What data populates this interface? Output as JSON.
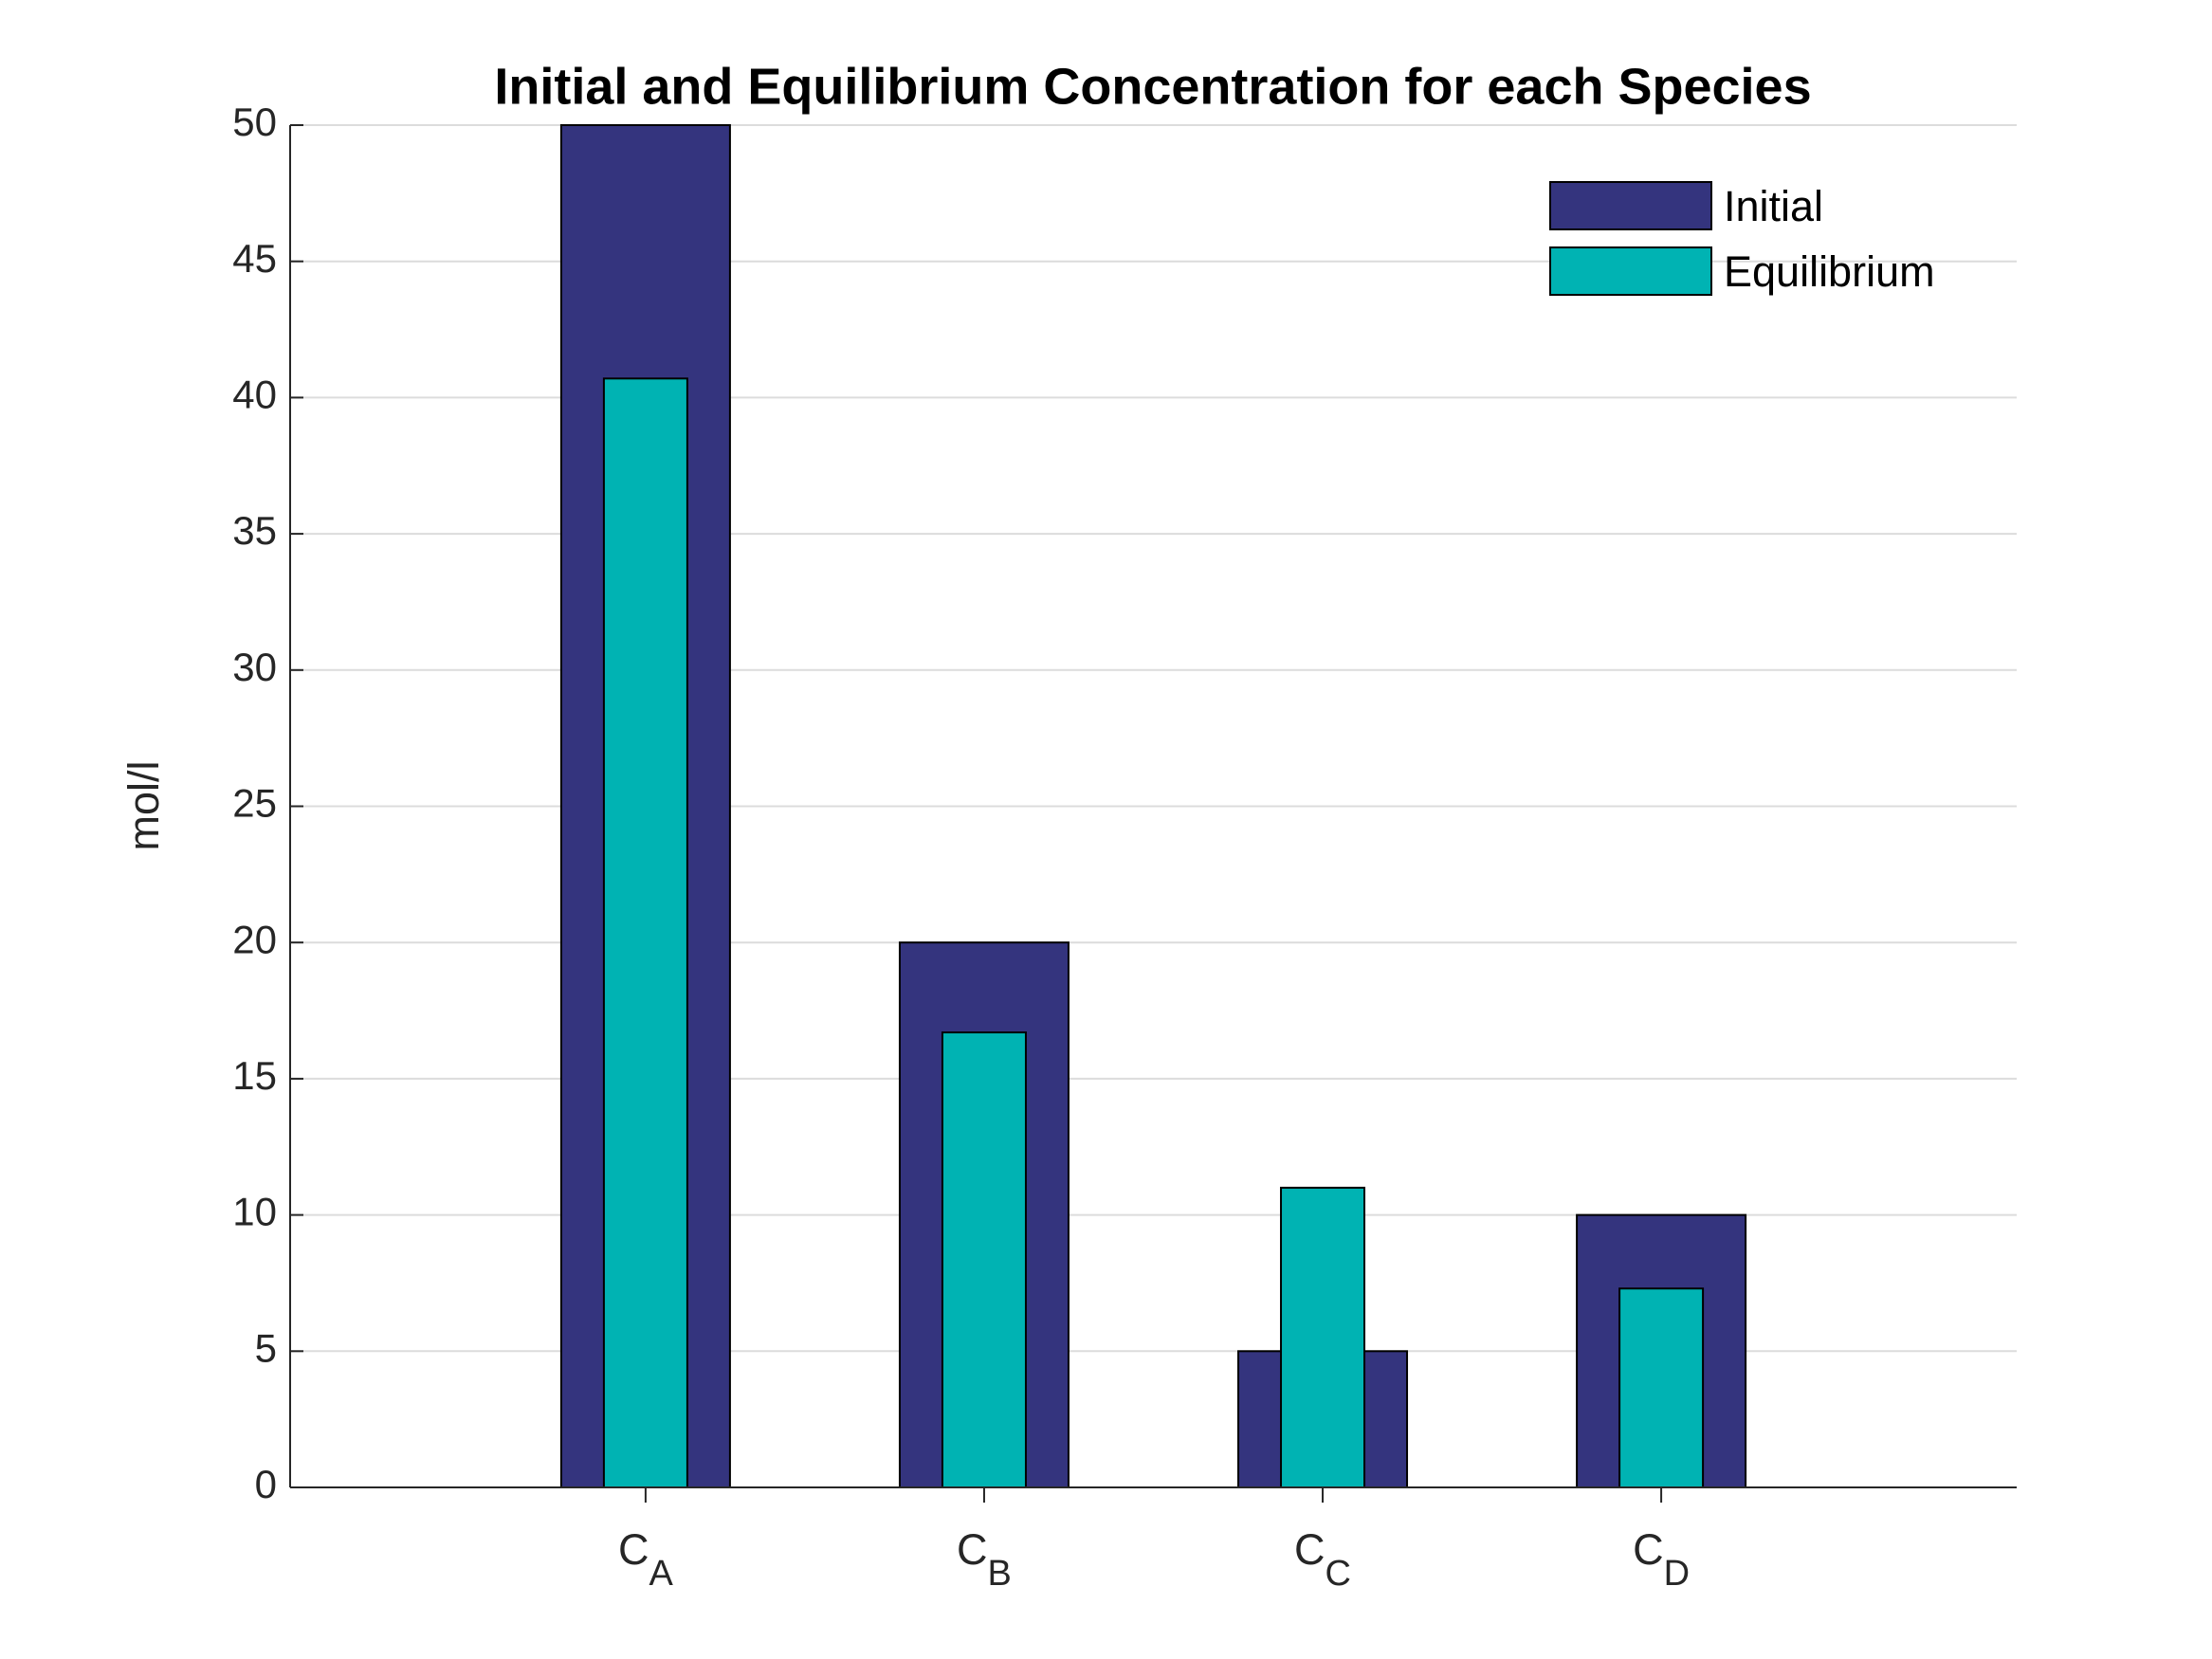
{
  "chart_data": {
    "type": "bar",
    "title": "Initial and Equilibrium Concentration for each Species",
    "y_label": "mol/l",
    "categories": [
      {
        "text": "C",
        "subscript": "A"
      },
      {
        "text": "C",
        "subscript": "B"
      },
      {
        "text": "C",
        "subscript": "C"
      },
      {
        "text": "C",
        "subscript": "D"
      }
    ],
    "series": [
      {
        "name": "Initial",
        "color": "#34347e",
        "values": [
          50,
          20,
          5,
          10
        ]
      },
      {
        "name": "Equilibrium",
        "color": "#00b3b3",
        "values": [
          40.7,
          16.7,
          11.0,
          7.3
        ]
      }
    ],
    "ylim": [
      0,
      50
    ],
    "yticks": [
      0,
      5,
      10,
      15,
      20,
      25,
      30,
      35,
      40,
      45,
      50
    ],
    "grid": true,
    "legend": "upper right"
  }
}
